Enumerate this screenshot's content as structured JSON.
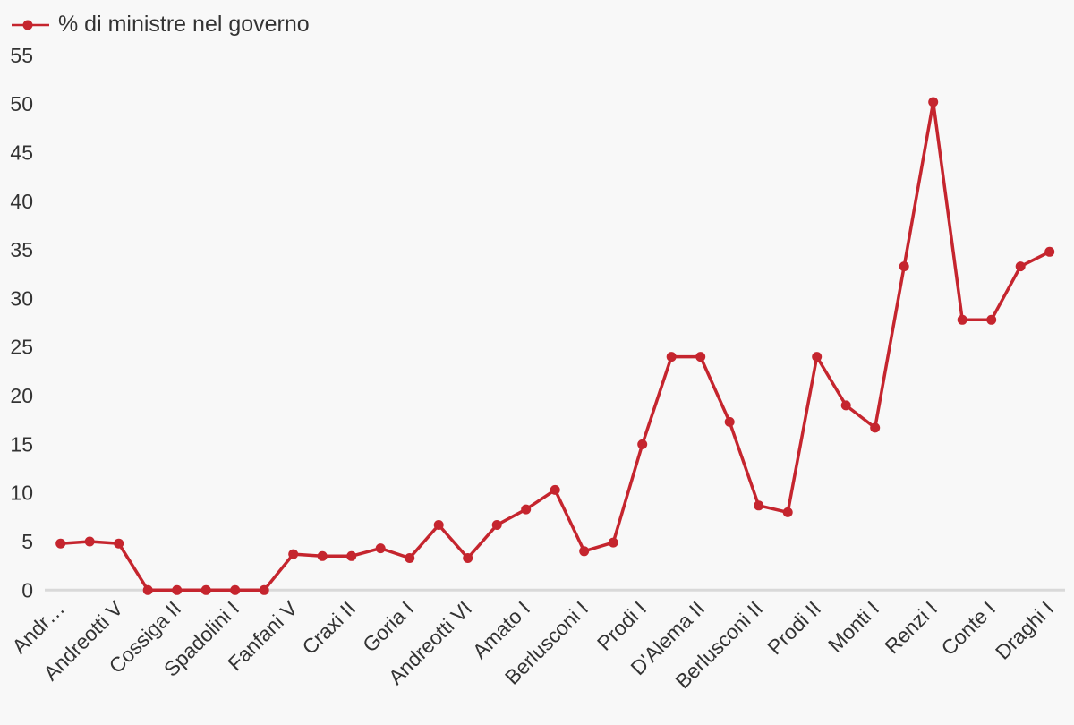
{
  "chart_data": {
    "type": "line",
    "title": "",
    "legend": {
      "position": "top-left",
      "label": "% di ministre nel governo"
    },
    "series": [
      {
        "name": "% di ministre nel governo",
        "color": "#c5252e",
        "values": [
          4.8,
          5.0,
          4.8,
          0,
          0,
          0,
          0,
          0,
          3.7,
          3.5,
          3.5,
          4.3,
          3.3,
          6.7,
          3.3,
          6.7,
          8.3,
          10.3,
          4.0,
          4.9,
          15.0,
          24.0,
          24.0,
          17.3,
          8.7,
          8.0,
          24.0,
          19.0,
          16.7,
          33.3,
          50.2,
          27.8,
          27.8,
          33.3,
          34.8
        ]
      }
    ],
    "n_points": 35,
    "x_tick_labels": [
      "Andr…",
      "Andreotti V",
      "Cossiga II",
      "Spadolini I",
      "Fanfani V",
      "Craxi II",
      "Goria I",
      "Andreotti VI",
      "Amato I",
      "Berlusconi I",
      "Prodi I",
      "D'Alema II",
      "Berlusconi II",
      "Prodi II",
      "Monti I",
      "Renzi I",
      "Conte I",
      "Draghi I"
    ],
    "x_tick_positions": [
      0,
      2,
      4,
      6,
      8,
      10,
      12,
      14,
      16,
      18,
      20,
      22,
      24,
      26,
      28,
      30,
      32,
      34
    ],
    "x_label_rotation": -45,
    "y_ticks": [
      0,
      5,
      10,
      15,
      20,
      25,
      30,
      35,
      40,
      45,
      50,
      55
    ],
    "ylim": [
      0,
      55
    ],
    "grid": "none",
    "background_color": "#f8f8f8",
    "text_color": "#333333",
    "axis_line_color": "#d9d9d9"
  }
}
